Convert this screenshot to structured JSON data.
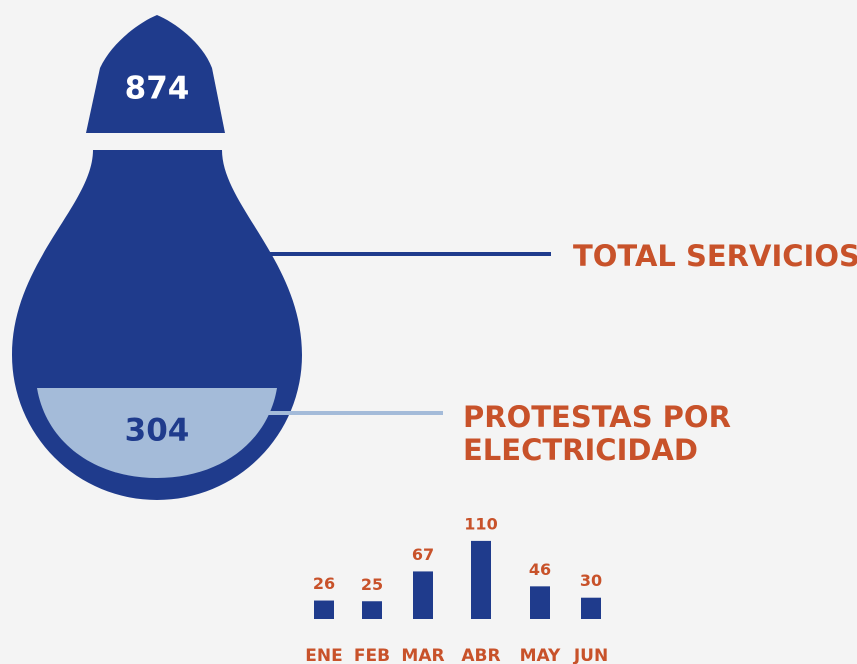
{
  "bulb": {
    "total": "874",
    "total_label": "TOTAL SERVICIOS",
    "protests": "304",
    "protests_label": [
      "PROTESTAS POR",
      "ELECTRICIDAD"
    ]
  },
  "chart_data": {
    "type": "bar",
    "categories": [
      "ENE",
      "FEB",
      "MAR",
      "ABR",
      "MAY",
      "JUN"
    ],
    "values": [
      26,
      25,
      67,
      110,
      46,
      30
    ],
    "color": "#1f3b8c"
  }
}
